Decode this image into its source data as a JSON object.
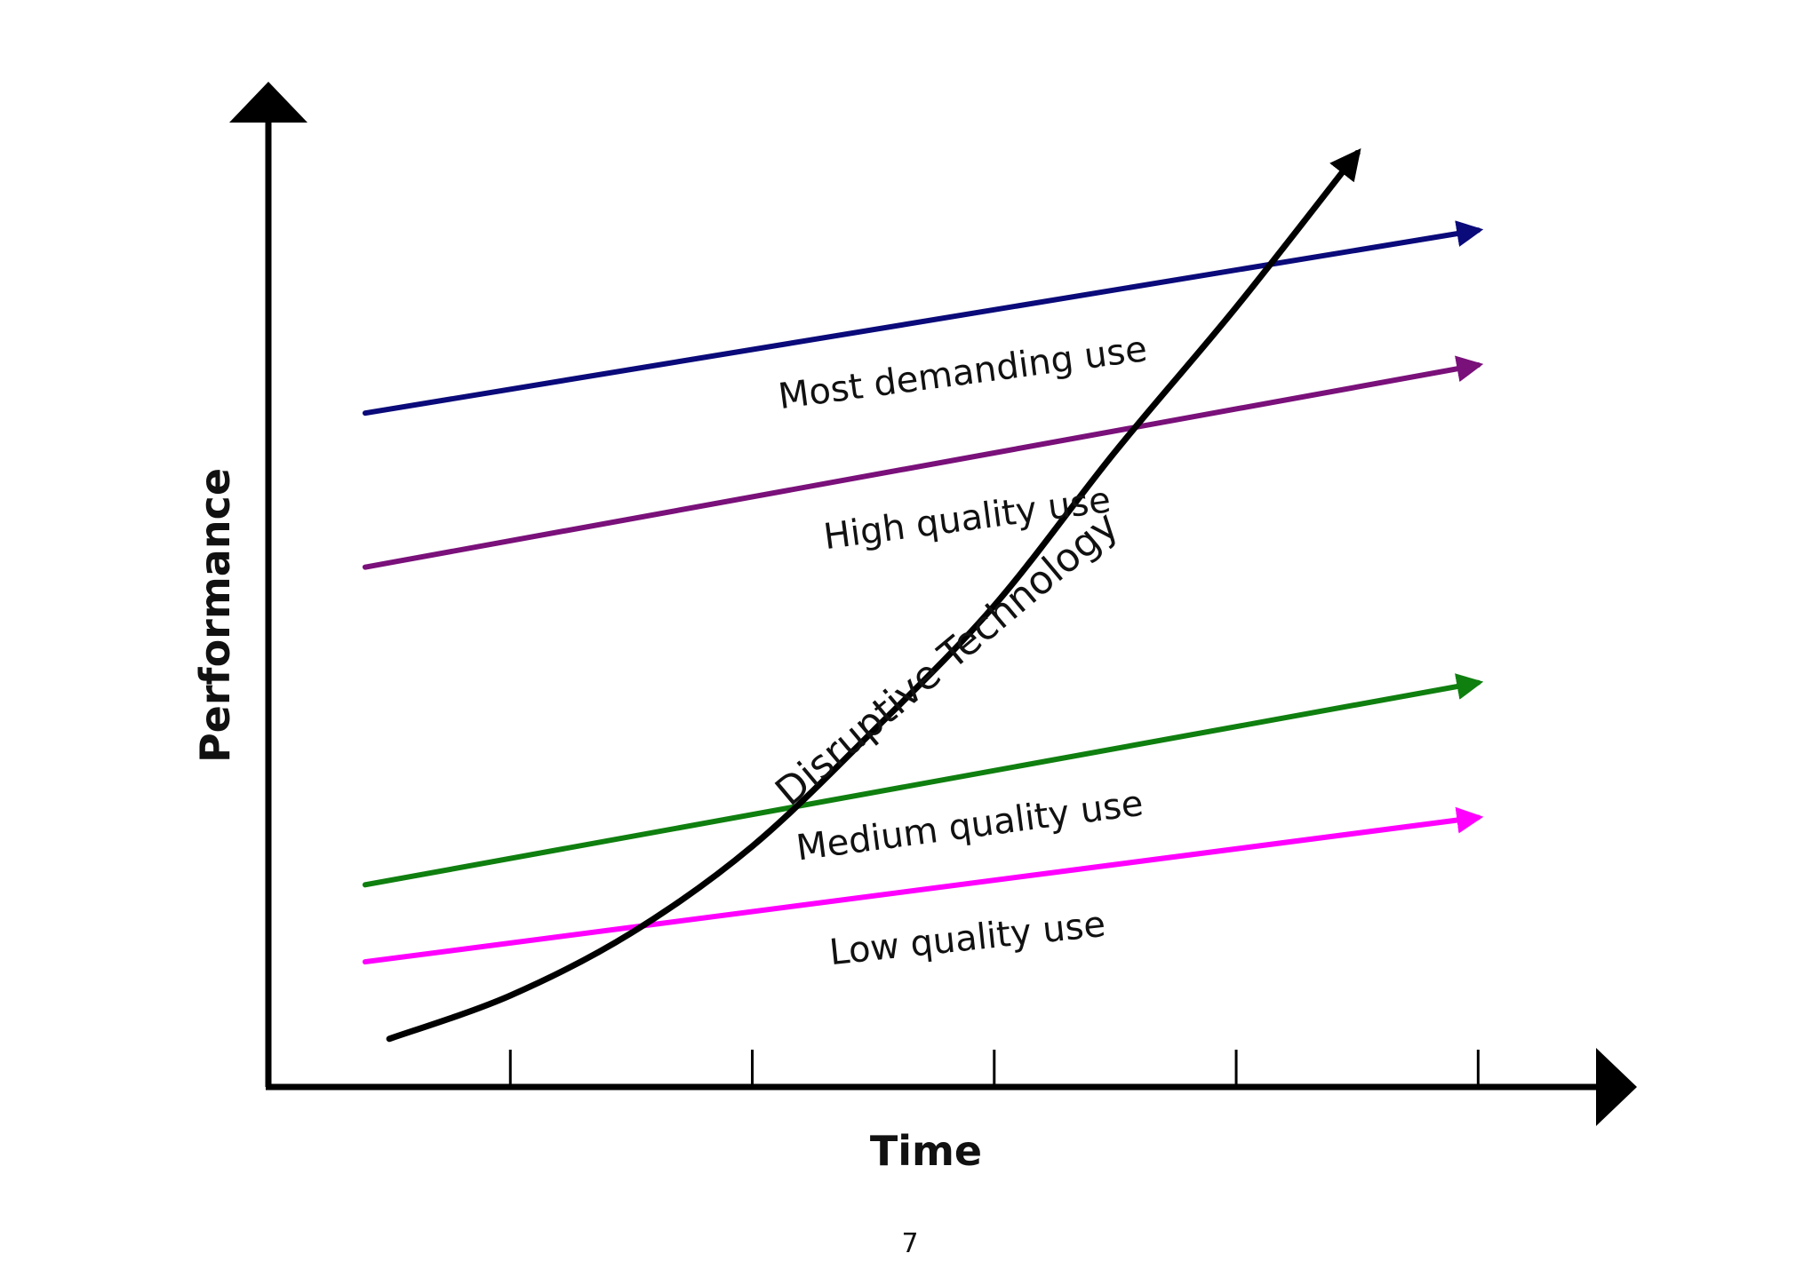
{
  "chart_data": {
    "type": "line",
    "title": "",
    "xlabel": "Time",
    "ylabel": "Performance",
    "xlim": [
      0,
      5.3
    ],
    "ylim": [
      0,
      10
    ],
    "x_ticks": [
      1,
      2,
      3,
      4,
      5
    ],
    "grid": false,
    "series": [
      {
        "name": "Most demanding use",
        "color": "#0a0a7a",
        "x": [
          0.4,
          5.0
        ],
        "y": [
          7.0,
          8.9
        ]
      },
      {
        "name": "High quality use",
        "color": "#7a107a",
        "x": [
          0.4,
          5.0
        ],
        "y": [
          5.4,
          7.5
        ]
      },
      {
        "name": "Medium quality use",
        "color": "#0f7f0f",
        "x": [
          0.4,
          5.0
        ],
        "y": [
          2.1,
          4.2
        ]
      },
      {
        "name": "Low quality use",
        "color": "#ff00ff",
        "x": [
          0.4,
          5.0
        ],
        "y": [
          1.3,
          2.8
        ]
      },
      {
        "name": "Disruptive Technology",
        "color": "#000000",
        "x": [
          0.5,
          1.0,
          1.5,
          2.0,
          2.5,
          3.0,
          3.5,
          4.0,
          4.5
        ],
        "y": [
          0.5,
          0.95,
          1.6,
          2.5,
          3.7,
          5.0,
          6.6,
          8.1,
          9.7
        ]
      }
    ]
  },
  "page_number": "7"
}
